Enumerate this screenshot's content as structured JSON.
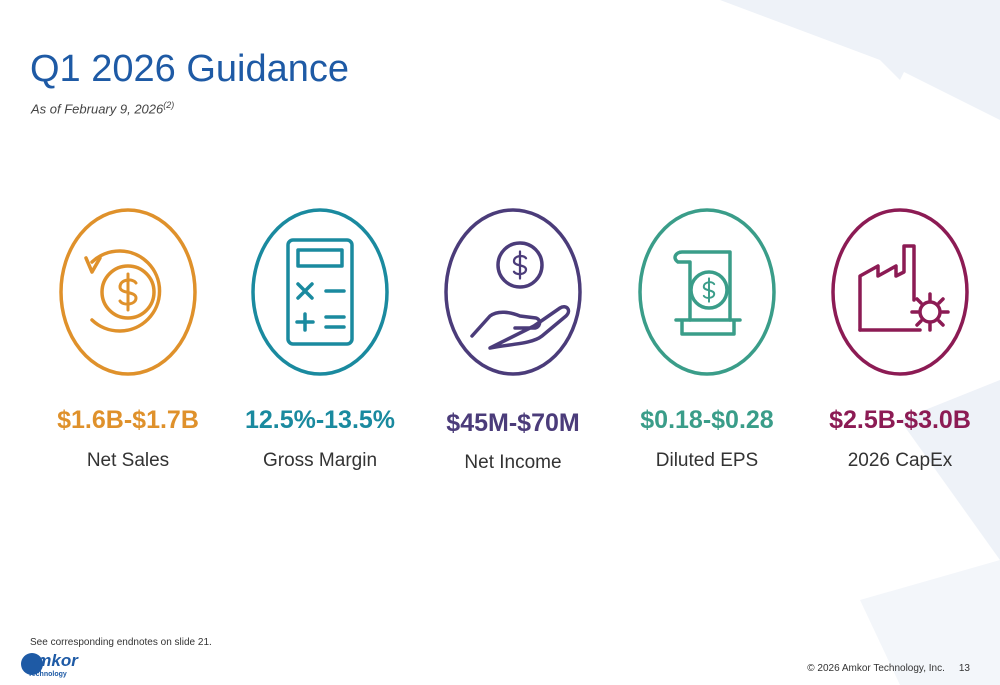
{
  "header": {
    "title": "Q1 2026 Guidance",
    "subtitle": "As of February 9, 2026",
    "subtitle_note": "(2)"
  },
  "items": [
    {
      "value": "$1.6B-$1.7B",
      "label": "Net Sales"
    },
    {
      "value": "12.5%-13.5%",
      "label": "Gross Margin"
    },
    {
      "value": "$45M-$70M",
      "label": "Net Income"
    },
    {
      "value": "$0.18-$0.28",
      "label": "Diluted EPS"
    },
    {
      "value": "$2.5B-$3.0B",
      "label": "2026 CapEx"
    }
  ],
  "footnote": "See corresponding endnotes on slide 21.",
  "footer": {
    "logo": "Amkor",
    "logo_sub": "Technology",
    "copyright": "© 2026 Amkor Technology, Inc.",
    "page": "13"
  }
}
